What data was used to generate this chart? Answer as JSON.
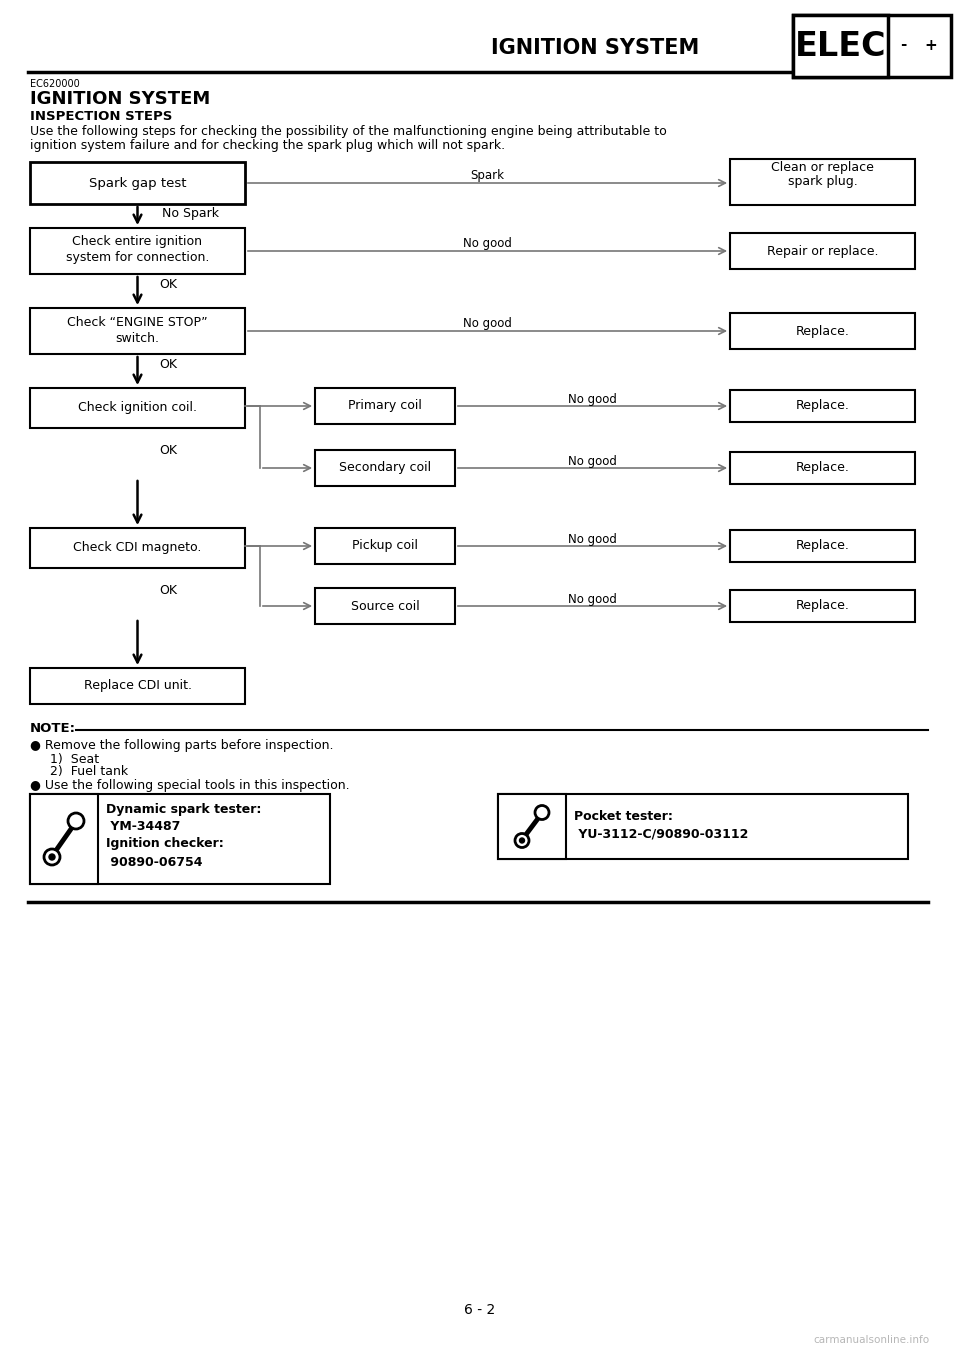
{
  "page_title": "IGNITION SYSTEM",
  "elec_label": "ELEC",
  "section_code": "EC620000",
  "section_title": "IGNITION SYSTEM",
  "subsection_title": "INSPECTION STEPS",
  "body_text_1": "Use the following steps for checking the possibility of the malfunctioning engine being attributable to",
  "body_text_2": "ignition system failure and for checking the spark plug which will not spark.",
  "note_title": "NOTE:",
  "note_bullet1": "Remove the following parts before inspection.",
  "note_item1": "1)  Seat",
  "note_item2": "2)  Fuel tank",
  "note_bullet2": "Use the following special tools in this inspection.",
  "tool1_line1": "Dynamic spark tester:",
  "tool1_line2": " YM-34487",
  "tool1_line3": "Ignition checker:",
  "tool1_line4": " 90890-06754",
  "tool2_line1": "Pocket tester:",
  "tool2_line2": " YU-3112-C/90890-03112",
  "page_number": "6 - 2",
  "watermark": "carmanualsonline.info",
  "bg_color": "#ffffff"
}
